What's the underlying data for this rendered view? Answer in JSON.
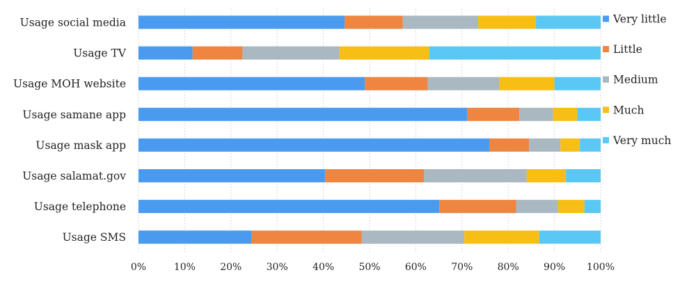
{
  "chart_data": {
    "type": "bar",
    "orientation": "horizontal",
    "stacked": "percent",
    "categories": [
      "Usage social media",
      "Usage TV",
      "Usage  MOH website",
      "Usage samane app",
      "Usage mask app",
      "Usage salamat.gov",
      "Usage telephone",
      "Usage SMS"
    ],
    "series": [
      {
        "name": "Very little",
        "color": "#4a9bef",
        "values": [
          44.6,
          11.7,
          49.0,
          71.1,
          75.9,
          40.4,
          65.1,
          24.4
        ]
      },
      {
        "name": "Little",
        "color": "#ee8642",
        "values": [
          12.6,
          10.8,
          13.6,
          11.3,
          8.6,
          21.4,
          16.6,
          23.9
        ]
      },
      {
        "name": "Medium",
        "color": "#a9b8c1",
        "values": [
          16.3,
          21.0,
          15.5,
          7.3,
          6.8,
          22.2,
          9.1,
          22.2
        ]
      },
      {
        "name": "Much",
        "color": "#f7bf15",
        "values": [
          12.5,
          19.4,
          11.9,
          5.2,
          4.2,
          8.5,
          5.7,
          16.2
        ]
      },
      {
        "name": "Very much",
        "color": "#5bc8f4",
        "values": [
          14.0,
          37.1,
          10.0,
          5.1,
          4.5,
          7.5,
          3.5,
          13.3
        ]
      }
    ],
    "xticks": [
      "0%",
      "10%",
      "20%",
      "30%",
      "40%",
      "50%",
      "60%",
      "70%",
      "80%",
      "90%",
      "100%"
    ],
    "xlim": [
      0,
      100
    ],
    "grid": "vertical-dashed",
    "legend_position": "right",
    "title": "",
    "xlabel": "",
    "ylabel": ""
  }
}
